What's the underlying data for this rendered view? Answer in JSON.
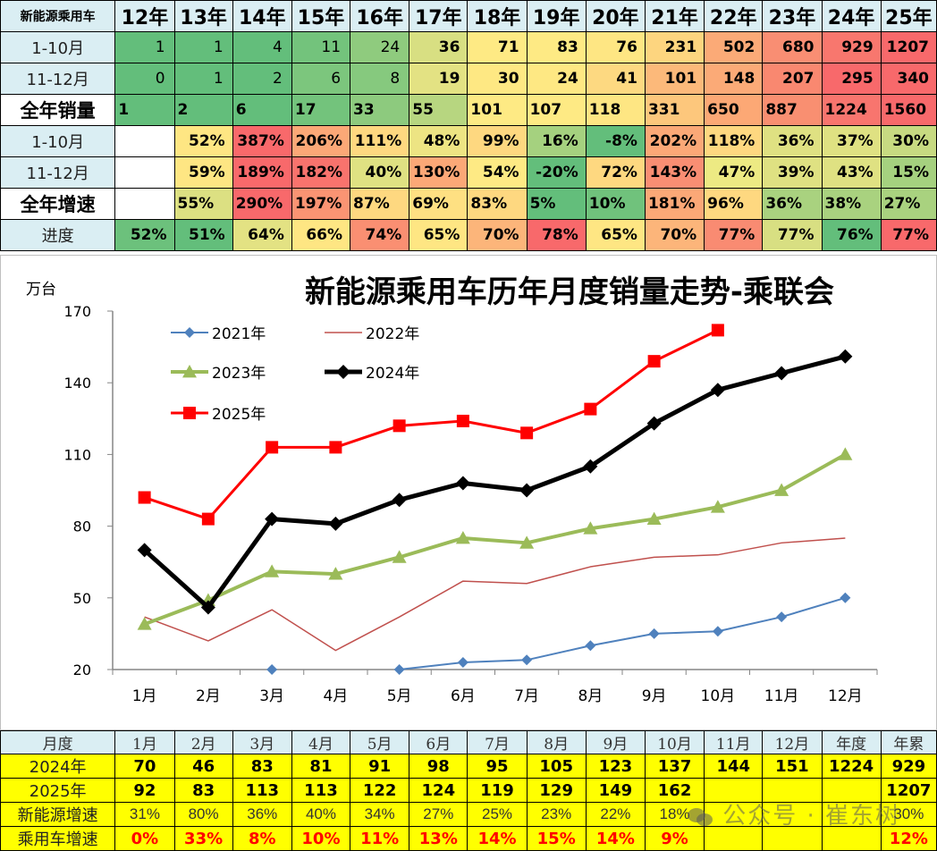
{
  "summary_table": {
    "corner_label": "新能源乘用车",
    "years": [
      "12年",
      "13年",
      "14年",
      "15年",
      "16年",
      "17年",
      "18年",
      "19年",
      "20年",
      "21年",
      "22年",
      "23年",
      "24年",
      "25年"
    ],
    "rows": [
      {
        "label": "1-10月",
        "style": "light",
        "values": [
          "1",
          "1",
          "4",
          "11",
          "24",
          "36",
          "71",
          "83",
          "76",
          "231",
          "502",
          "680",
          "929",
          "1207"
        ],
        "colors": [
          "#63be7b",
          "#63be7b",
          "#63be7b",
          "#73c37c",
          "#8fcb7e",
          "#d8df82",
          "#feea84",
          "#feea84",
          "#fee683",
          "#fdd57f",
          "#fbaa77",
          "#f98e73",
          "#f8776e",
          "#f8696b"
        ]
      },
      {
        "label": "11-12月",
        "style": "light",
        "values": [
          "0",
          "1",
          "2",
          "6",
          "8",
          "19",
          "30",
          "24",
          "41",
          "101",
          "148",
          "207",
          "295",
          "340"
        ],
        "colors": [
          "#63be7b",
          "#63be7b",
          "#63be7b",
          "#7cc67d",
          "#86c97e",
          "#e3e283",
          "#fee883",
          "#fee883",
          "#fdd981",
          "#fcb97a",
          "#fbaa77",
          "#f98870",
          "#f8696b",
          "#f8696b"
        ]
      },
      {
        "label": "全年销量",
        "style": "bold",
        "values": [
          "1",
          "2",
          "6",
          "17",
          "33",
          "55",
          "101",
          "107",
          "118",
          "331",
          "650",
          "887",
          "1224",
          "1560"
        ],
        "colors": [
          "#63be7b",
          "#63be7b",
          "#63be7b",
          "#73c37c",
          "#8dca7e",
          "#b7d680",
          "#feea84",
          "#feea84",
          "#fee683",
          "#fdc77c",
          "#fca875",
          "#f98f71",
          "#f8756e",
          "#f8696b"
        ]
      }
    ],
    "growth_rows": [
      {
        "label": "1-10月",
        "style": "light",
        "values": [
          "",
          "52%",
          "387%",
          "206%",
          "111%",
          "48%",
          "99%",
          "16%",
          "-8%",
          "202%",
          "118%",
          "36%",
          "37%",
          "30%"
        ],
        "colors": [
          "#ffffff",
          "#fee683",
          "#f8696b",
          "#fba877",
          "#fed880",
          "#ede483",
          "#fed880",
          "#a5d17f",
          "#63be7b",
          "#fba877",
          "#fed880",
          "#dfe182",
          "#dfe182",
          "#c7da81"
        ]
      },
      {
        "label": "11-12月",
        "style": "light",
        "values": [
          "",
          "59%",
          "189%",
          "182%",
          "40%",
          "130%",
          "54%",
          "-20%",
          "72%",
          "143%",
          "47%",
          "39%",
          "43%",
          "15%"
        ],
        "colors": [
          "#ffffff",
          "#fee683",
          "#f8696b",
          "#f8736d",
          "#dfe182",
          "#fba877",
          "#feea84",
          "#63be7b",
          "#fed880",
          "#f98e73",
          "#edea83",
          "#dfe182",
          "#dfe182",
          "#a5d17f"
        ]
      },
      {
        "label": "全年增速",
        "style": "bold",
        "values": [
          "",
          "55%",
          "290%",
          "197%",
          "87%",
          "69%",
          "83%",
          "5%",
          "10%",
          "181%",
          "96%",
          "36%",
          "38%",
          "27%"
        ],
        "colors": [
          "#ffffff",
          "#dce082",
          "#f8696b",
          "#fa9473",
          "#fed880",
          "#fee082",
          "#fed880",
          "#63be7b",
          "#70c27c",
          "#fba877",
          "#fed880",
          "#a9d27f",
          "#a9d27f",
          "#a9d27f"
        ]
      },
      {
        "label": "进度",
        "style": "light",
        "values": [
          "52%",
          "51%",
          "64%",
          "66%",
          "74%",
          "65%",
          "70%",
          "78%",
          "65%",
          "70%",
          "77%",
          "77%",
          "76%",
          "77%"
        ],
        "colors": [
          "#6cc17c",
          "#63be7b",
          "#e3e283",
          "#fee683",
          "#fa8f72",
          "#fee683",
          "#fcb57a",
          "#f8696b",
          "#fee683",
          "#fcb57a",
          "#f98b72",
          "#d8df82",
          "#63be7b",
          "#f8696b"
        ]
      }
    ]
  },
  "chart_data": {
    "type": "line",
    "title": "新能源乘用车历年月度销量走势-乘联会",
    "ylabel": "万台",
    "xlabel": "",
    "ylim": [
      20,
      170
    ],
    "yticks": [
      20,
      50,
      80,
      110,
      140,
      170
    ],
    "categories": [
      "1月",
      "2月",
      "3月",
      "4月",
      "5月",
      "6月",
      "7月",
      "8月",
      "9月",
      "10月",
      "11月",
      "12月"
    ],
    "legend_position": "upper-left-inside",
    "grid": false,
    "series": [
      {
        "name": "2021年",
        "color": "#4f81bd",
        "marker": "diamond",
        "width": 2,
        "values": [
          null,
          null,
          20,
          null,
          20,
          23,
          24,
          30,
          35,
          36,
          42,
          50
        ]
      },
      {
        "name": "2022年",
        "color": "#c0504d",
        "marker": "none",
        "width": 1.5,
        "values": [
          42,
          32,
          45,
          28,
          42,
          57,
          56,
          63,
          67,
          68,
          73,
          75
        ]
      },
      {
        "name": "2023年",
        "color": "#9bbb59",
        "marker": "triangle",
        "width": 4,
        "values": [
          39,
          49,
          61,
          60,
          67,
          75,
          73,
          79,
          83,
          88,
          95,
          110
        ]
      },
      {
        "name": "2024年",
        "color": "#000000",
        "marker": "diamond",
        "width": 5,
        "values": [
          70,
          46,
          83,
          81,
          91,
          98,
          95,
          105,
          123,
          137,
          144,
          151
        ]
      },
      {
        "name": "2025年",
        "color": "#ff0000",
        "marker": "square",
        "width": 3,
        "values": [
          92,
          83,
          113,
          113,
          122,
          124,
          119,
          129,
          149,
          162,
          null,
          null
        ]
      }
    ]
  },
  "monthly_table": {
    "header_label": "月度",
    "headers": [
      "1月",
      "2月",
      "3月",
      "4月",
      "5月",
      "6月",
      "7月",
      "8月",
      "9月",
      "10月",
      "11月",
      "12月",
      "年度",
      "年累"
    ],
    "rows": [
      {
        "label": "2024年",
        "kind": "bold",
        "values": [
          "70",
          "46",
          "83",
          "81",
          "91",
          "98",
          "95",
          "105",
          "123",
          "137",
          "144",
          "151",
          "1224",
          "929"
        ]
      },
      {
        "label": "2025年",
        "kind": "bold",
        "values": [
          "92",
          "83",
          "113",
          "113",
          "122",
          "124",
          "119",
          "129",
          "149",
          "162",
          "",
          "",
          "",
          "1207"
        ]
      },
      {
        "label": "新能源增速",
        "kind": "light",
        "values": [
          "31%",
          "80%",
          "36%",
          "40%",
          "34%",
          "27%",
          "25%",
          "23%",
          "22%",
          "18%",
          "",
          "",
          "",
          "30%"
        ]
      },
      {
        "label": "乘用车增速",
        "kind": "red",
        "values": [
          "0%",
          "33%",
          "8%",
          "10%",
          "11%",
          "13%",
          "14%",
          "15%",
          "14%",
          "9%",
          "",
          "",
          "",
          "12%"
        ]
      }
    ]
  },
  "watermark": {
    "text": "公众号 · 崔东树"
  }
}
